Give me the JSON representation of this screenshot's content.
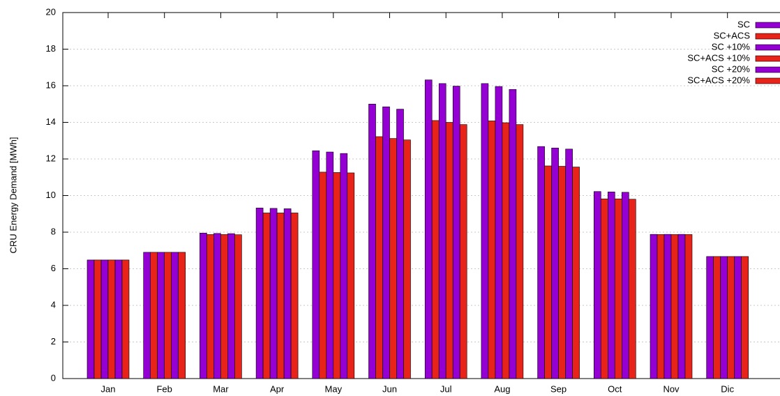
{
  "chart_data": {
    "type": "bar",
    "y_label": "CRU Energy Demand [MWh]",
    "categories": [
      "Jan",
      "Feb",
      "Mar",
      "Apr",
      "May",
      "Jun",
      "Jul",
      "Aug",
      "Sep",
      "Oct",
      "Nov",
      "Dic"
    ],
    "series": [
      {
        "name": "SC",
        "color": "#9400d3",
        "values": [
          6.48,
          6.9,
          7.95,
          9.32,
          12.45,
          15.0,
          16.32,
          16.12,
          12.68,
          10.22,
          7.88,
          6.67
        ]
      },
      {
        "name": "SC+ACS",
        "color": "#e8231a",
        "values": [
          6.48,
          6.9,
          7.87,
          9.05,
          11.28,
          13.22,
          14.1,
          14.08,
          11.62,
          9.82,
          7.87,
          6.67
        ]
      },
      {
        "name": "SC +10%",
        "color": "#9400d3",
        "values": [
          6.48,
          6.9,
          7.93,
          9.3,
          12.38,
          14.85,
          16.12,
          15.96,
          12.6,
          10.2,
          7.88,
          6.67
        ]
      },
      {
        "name": "SC+ACS +10%",
        "color": "#e8231a",
        "values": [
          6.48,
          6.9,
          7.87,
          9.05,
          11.26,
          13.12,
          14.0,
          13.98,
          11.6,
          9.82,
          7.87,
          6.67
        ]
      },
      {
        "name": "SC +20%",
        "color": "#9400d3",
        "values": [
          6.48,
          6.9,
          7.92,
          9.28,
          12.3,
          14.72,
          15.98,
          15.8,
          12.54,
          10.18,
          7.88,
          6.67
        ]
      },
      {
        "name": "SC+ACS +20%",
        "color": "#e8231a",
        "values": [
          6.48,
          6.9,
          7.86,
          9.05,
          11.24,
          13.04,
          13.88,
          13.88,
          11.56,
          9.8,
          7.87,
          6.67
        ]
      }
    ],
    "ylim": [
      0,
      20
    ],
    "yticks": [
      0,
      2,
      4,
      6,
      8,
      10,
      12,
      14,
      16,
      18,
      20
    ],
    "grid": true,
    "legend": "upper right"
  }
}
